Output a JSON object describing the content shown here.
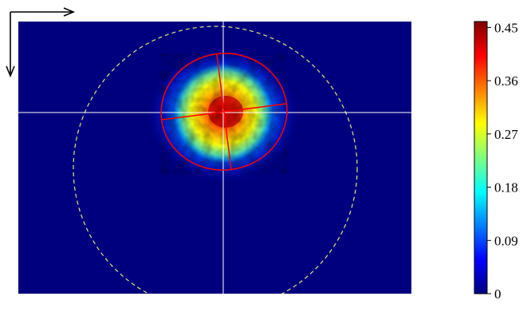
{
  "beam_profile": {
    "colors": {
      "background": "#00007f",
      "crosshair": "#ffffff",
      "fit_ellipse": "#ff0000",
      "aperture_circle": "#e6e67a",
      "axis_arrows": "#000000"
    },
    "icons": {
      "horizontal_axis": "right-arrow-icon",
      "vertical_axis": "down-arrow-icon"
    },
    "colormap": {
      "name": "jet",
      "stops": [
        "#00007f",
        "#0000ff",
        "#007fff",
        "#00ffff",
        "#7fff7f",
        "#ffff00",
        "#ff7f00",
        "#ff0000",
        "#7f0000"
      ]
    },
    "colorbar": {
      "min": 0,
      "max": 0.46,
      "ticks": [
        {
          "value": 0,
          "label": "0"
        },
        {
          "value": 0.09,
          "label": "0.09"
        },
        {
          "value": 0.18,
          "label": "0.18"
        },
        {
          "value": 0.27,
          "label": "0.27"
        },
        {
          "value": 0.36,
          "label": "0.36"
        },
        {
          "value": 0.45,
          "label": "0.45"
        }
      ]
    }
  }
}
